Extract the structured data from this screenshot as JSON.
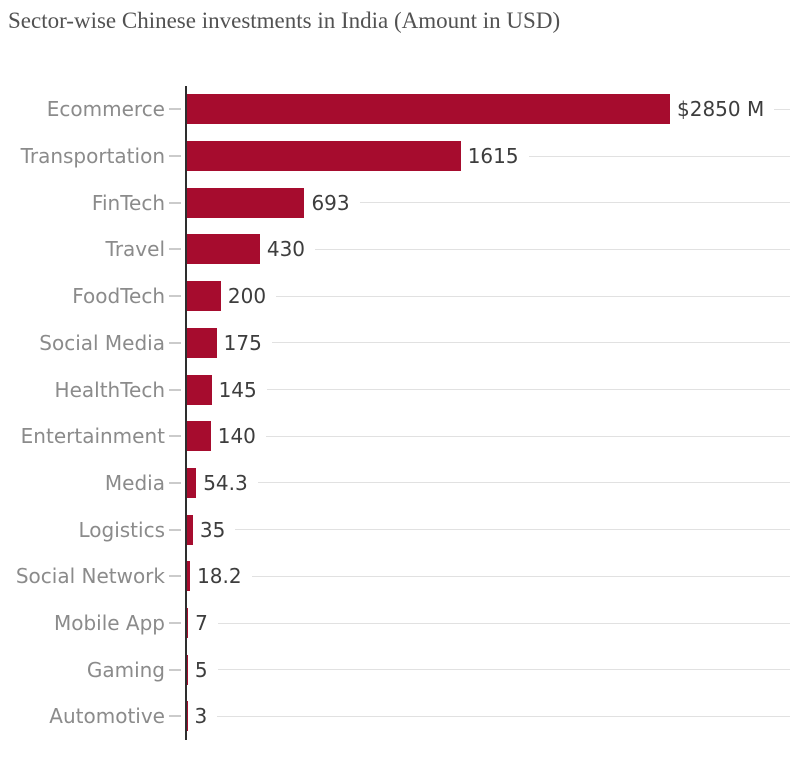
{
  "title": "Sector-wise Chinese investments in India (Amount in USD)",
  "chart_data": {
    "type": "bar",
    "orientation": "horizontal",
    "title": "Sector-wise Chinese investments in India (Amount in USD)",
    "xlabel": "",
    "ylabel": "",
    "unit": "USD millions",
    "grid": "off",
    "legend": "none",
    "xlim": [
      0,
      2850
    ],
    "categories": [
      "Ecommerce",
      "Transportation",
      "FinTech",
      "Travel",
      "FoodTech",
      "Social Media",
      "HealthTech",
      "Entertainment",
      "Media",
      "Logistics",
      "Social Network",
      "Mobile App",
      "Gaming",
      "Automotive"
    ],
    "values": [
      2850,
      1615,
      693,
      430,
      200,
      175,
      145,
      140,
      54.3,
      35,
      18.2,
      7,
      5,
      3
    ],
    "value_labels": [
      "$2850 M",
      "1615",
      "693",
      "430",
      "200",
      "175",
      "145",
      "140",
      "54.3",
      "35",
      "18.2",
      "7",
      "5",
      "3"
    ],
    "bar_color": "#a60c2e",
    "colors": {
      "axis_line": "#2e2e2e",
      "tick": "#cbcbcb",
      "leader_line": "#e1e1e1",
      "category_label": "#8b8b8b",
      "value_label": "#3d3d3d",
      "title": "#525252",
      "background": "#ffffff"
    }
  }
}
